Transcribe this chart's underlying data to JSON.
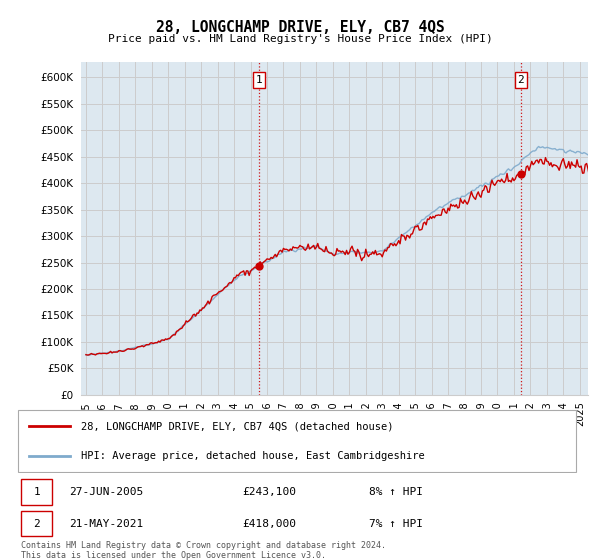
{
  "title": "28, LONGCHAMP DRIVE, ELY, CB7 4QS",
  "subtitle": "Price paid vs. HM Land Registry's House Price Index (HPI)",
  "ytick_values": [
    0,
    50000,
    100000,
    150000,
    200000,
    250000,
    300000,
    350000,
    400000,
    450000,
    500000,
    550000,
    600000
  ],
  "ylim": [
    0,
    630000
  ],
  "xlim_start": 1994.7,
  "xlim_end": 2025.5,
  "sale1_x": 2005.49,
  "sale1_price": 243100,
  "sale2_x": 2021.38,
  "sale2_price": 418000,
  "legend_red": "28, LONGCHAMP DRIVE, ELY, CB7 4QS (detached house)",
  "legend_blue": "HPI: Average price, detached house, East Cambridgeshire",
  "table_rows": [
    {
      "num": "1",
      "date": "27-JUN-2005",
      "price": "£243,100",
      "change": "8% ↑ HPI"
    },
    {
      "num": "2",
      "date": "21-MAY-2021",
      "price": "£418,000",
      "change": "7% ↑ HPI"
    }
  ],
  "footnote": "Contains HM Land Registry data © Crown copyright and database right 2024.\nThis data is licensed under the Open Government Licence v3.0.",
  "red_color": "#cc0000",
  "blue_color": "#7faacc",
  "grid_color": "#cccccc",
  "bg_color": "#ffffff",
  "plot_bg_color": "#dde8f0"
}
